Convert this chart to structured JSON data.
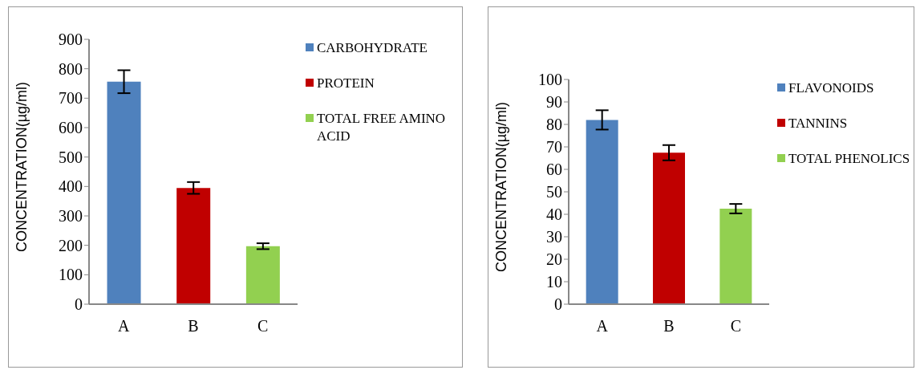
{
  "chart_data": [
    {
      "type": "bar",
      "categories": [
        "A",
        "B",
        "C"
      ],
      "ylabel": "CONCENTRATION(µg/ml)",
      "ylim": [
        0,
        900
      ],
      "yticks": [
        0,
        100,
        200,
        300,
        400,
        500,
        600,
        700,
        800,
        900
      ],
      "legend": "top right",
      "series": [
        {
          "name": "CARBOHYDRATE",
          "color": "#4f81bd",
          "values": [
            756,
            null,
            null
          ],
          "errors": [
            39,
            null,
            null
          ]
        },
        {
          "name": "PROTEIN",
          "color": "#c00000",
          "values": [
            null,
            395,
            null
          ],
          "errors": [
            null,
            20,
            null
          ]
        },
        {
          "name": "TOTAL FREE AMINO ACID",
          "color": "#92d050",
          "values": [
            null,
            null,
            197
          ],
          "errors": [
            null,
            null,
            10
          ]
        }
      ]
    },
    {
      "type": "bar",
      "categories": [
        "A",
        "B",
        "C"
      ],
      "ylabel": "CONCENTRATION(µg/ml)",
      "ylim": [
        0,
        100
      ],
      "yticks": [
        0,
        10,
        20,
        30,
        40,
        50,
        60,
        70,
        80,
        90,
        100
      ],
      "legend": "top right",
      "series": [
        {
          "name": "FLAVONOIDS",
          "color": "#4f81bd",
          "values": [
            82,
            null,
            null
          ],
          "errors": [
            4.3,
            null,
            null
          ]
        },
        {
          "name": "TANNINS",
          "color": "#c00000",
          "values": [
            null,
            67.4,
            null
          ],
          "errors": [
            null,
            3.4,
            null
          ]
        },
        {
          "name": "TOTAL PHENOLICS",
          "color": "#92d050",
          "values": [
            null,
            null,
            42.5
          ],
          "errors": [
            null,
            null,
            2.1
          ]
        }
      ]
    }
  ]
}
